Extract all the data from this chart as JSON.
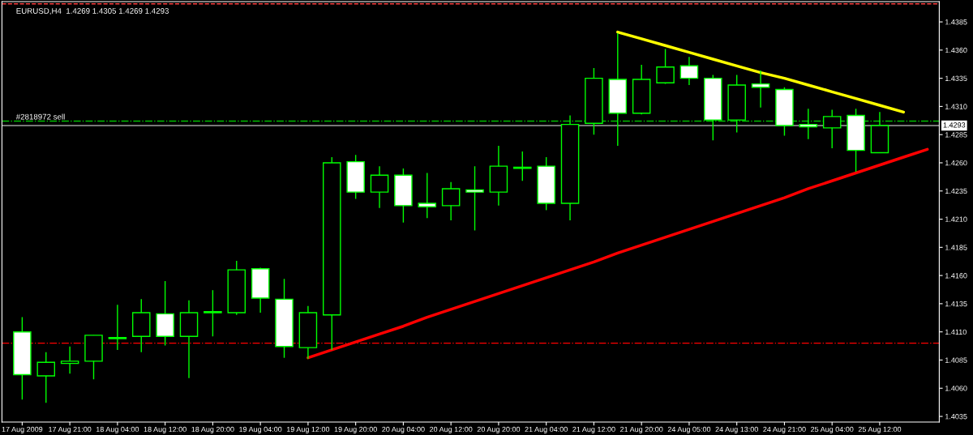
{
  "chart_data": {
    "type": "candlestick",
    "title": "EURUSD,H4  1.4269 1.4305 1.4269 1.4293",
    "categories": [
      "17 Aug 2009",
      null,
      "17 Aug 21:00",
      null,
      "18 Aug 04:00",
      null,
      "18 Aug 12:00",
      null,
      "18 Aug 20:00",
      null,
      "19 Aug 04:00",
      null,
      "19 Aug 12:00",
      null,
      "19 Aug 20:00",
      null,
      "20 Aug 04:00",
      null,
      "20 Aug 12:00",
      null,
      "20 Aug 20:00",
      null,
      "21 Aug 04:00",
      null,
      "21 Aug 12:00",
      null,
      "21 Aug 20:00",
      null,
      "24 Aug 05:00",
      null,
      "24 Aug 13:00",
      null,
      "24 Aug 21:00",
      null,
      "25 Aug 04:00",
      null,
      "25 Aug 12:00",
      null,
      null
    ],
    "color": "#00ff00",
    "ohlc": [
      [
        1.411,
        1.4123,
        1.405,
        1.4072
      ],
      [
        1.4071,
        1.4092,
        1.4047,
        1.4083
      ],
      [
        1.4082,
        1.4097,
        1.4073,
        1.4084
      ],
      [
        1.4084,
        1.4107,
        1.4068,
        1.4107
      ],
      [
        1.4104,
        1.4134,
        1.4094,
        1.4105
      ],
      [
        1.4106,
        1.4139,
        1.4092,
        1.4127
      ],
      [
        1.4126,
        1.4155,
        1.4098,
        1.4106
      ],
      [
        1.4106,
        1.4138,
        1.4069,
        1.4127
      ],
      [
        1.4127,
        1.4147,
        1.4106,
        1.4128
      ],
      [
        1.4127,
        1.4173,
        1.4125,
        1.4165
      ],
      [
        1.4166,
        1.4167,
        1.4127,
        1.414
      ],
      [
        1.4139,
        1.4157,
        1.4087,
        1.4097
      ],
      [
        1.4096,
        1.4133,
        1.4086,
        1.4127
      ],
      [
        1.4125,
        1.4265,
        1.4094,
        1.426
      ],
      [
        1.4261,
        1.4267,
        1.4228,
        1.4234
      ],
      [
        1.4234,
        1.4257,
        1.422,
        1.4249
      ],
      [
        1.4249,
        1.4255,
        1.4207,
        1.4222
      ],
      [
        1.4224,
        1.4251,
        1.4211,
        1.4221
      ],
      [
        1.4222,
        1.4243,
        1.4209,
        1.4237
      ],
      [
        1.4236,
        1.4257,
        1.42,
        1.4234
      ],
      [
        1.4234,
        1.4275,
        1.4222,
        1.4257
      ],
      [
        1.4255,
        1.427,
        1.4244,
        1.4256
      ],
      [
        1.4257,
        1.4265,
        1.4218,
        1.4224
      ],
      [
        1.4224,
        1.4302,
        1.4209,
        1.4294
      ],
      [
        1.4295,
        1.4344,
        1.4285,
        1.4335
      ],
      [
        1.4334,
        1.4375,
        1.4275,
        1.4304
      ],
      [
        1.4304,
        1.4347,
        1.4303,
        1.4334
      ],
      [
        1.4331,
        1.4361,
        1.433,
        1.4345
      ],
      [
        1.4346,
        1.4354,
        1.4329,
        1.4335
      ],
      [
        1.4335,
        1.4338,
        1.428,
        1.4298
      ],
      [
        1.4298,
        1.4338,
        1.4287,
        1.4329
      ],
      [
        1.433,
        1.4342,
        1.4309,
        1.4327
      ],
      [
        1.4325,
        1.4327,
        1.4284,
        1.4293
      ],
      [
        1.4294,
        1.4308,
        1.4281,
        1.4292
      ],
      [
        1.4291,
        1.4307,
        1.4273,
        1.4301
      ],
      [
        1.4302,
        1.4308,
        1.4252,
        1.4271
      ],
      [
        1.4269,
        1.4305,
        1.4269,
        1.4293
      ],
      null,
      null
    ],
    "series": [
      {
        "type": "line",
        "color": "#ffff00",
        "values": [
          null,
          null,
          null,
          null,
          null,
          null,
          null,
          null,
          null,
          null,
          null,
          null,
          null,
          null,
          null,
          null,
          null,
          null,
          null,
          null,
          null,
          null,
          null,
          null,
          null,
          1.4376,
          1.437,
          1.4364,
          1.4358,
          1.4352,
          1.4346,
          1.434,
          1.4335,
          1.4329,
          1.4323,
          1.4317,
          1.4311,
          1.4305,
          null
        ]
      },
      {
        "type": "line",
        "color": "#ff0000",
        "values": [
          null,
          null,
          null,
          null,
          null,
          null,
          null,
          null,
          null,
          null,
          null,
          null,
          1.4087,
          1.4094,
          1.4101,
          1.4108,
          1.4115,
          1.4123,
          1.413,
          1.4137,
          1.4144,
          1.4151,
          1.4158,
          1.4165,
          1.4172,
          1.418,
          1.4187,
          1.4194,
          1.4201,
          1.4208,
          1.4215,
          1.4222,
          1.4229,
          1.4237,
          1.4244,
          1.4251,
          1.4258,
          1.4265,
          1.4272
        ]
      }
    ],
    "ylim": [
      1.403,
      1.4403
    ],
    "yticks": [
      1.4035,
      {
        "value": 1.406,
        "label": "1.4060"
      },
      1.4085,
      {
        "value": 1.411,
        "label": "1.4110"
      },
      1.4135,
      {
        "value": 1.416,
        "label": "1.4160"
      },
      1.4185,
      {
        "value": 1.421,
        "label": "1.4210"
      },
      1.4235,
      {
        "value": 1.426,
        "label": "1.4260"
      },
      1.4285,
      {
        "value": 1.431,
        "label": "1.4310"
      },
      1.4335,
      {
        "value": 1.436,
        "label": "1.4360"
      },
      1.4385
    ],
    "ref_lines": [
      {
        "axis": "y",
        "value": 1.4297,
        "label": "#2818972 sell",
        "color": "#00c000",
        "line_style": "dashdot"
      },
      {
        "axis": "y",
        "value": 1.4293,
        "label": "1.4293",
        "color": "#a0a0a0",
        "line_style": "solid"
      },
      {
        "axis": "y",
        "value": 1.41,
        "color": "#ff0000",
        "line_style": "dashdot"
      },
      {
        "axis": "y",
        "value": 1.4401,
        "color": "#ff4040",
        "line_style": "dashed"
      }
    ],
    "grid": false,
    "legend": false
  }
}
